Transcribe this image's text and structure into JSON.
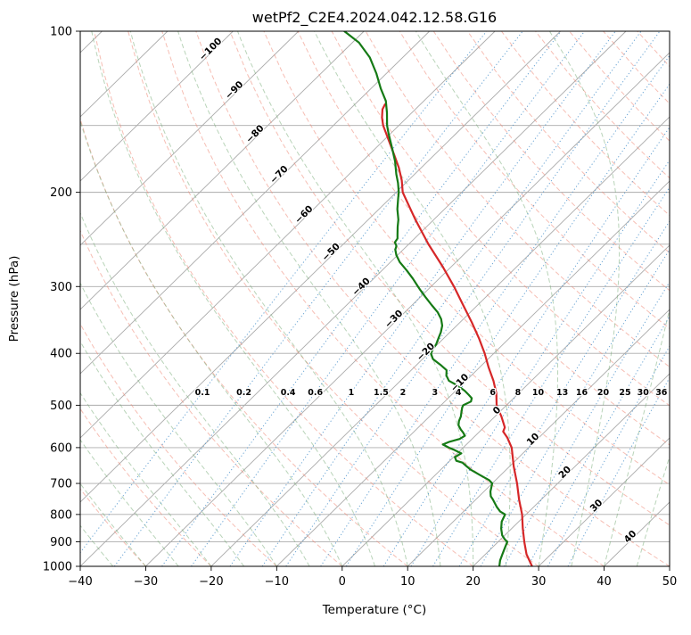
{
  "title": "wetPf2_C2E4.2024.042.12.58.G16",
  "chart_data": {
    "type": "line",
    "variant": "skew-t-log-p",
    "title": "wetPf2_C2E4.2024.042.12.58.G16",
    "xlabel": "Temperature (°C)",
    "ylabel": "Pressure (hPa)",
    "xlim": [
      -40,
      50
    ],
    "plim": [
      100,
      1000
    ],
    "skew_slope": 1.02,
    "x_ticks": [
      -40,
      -30,
      -20,
      -10,
      0,
      10,
      20,
      30,
      40,
      50
    ],
    "y_ticks": [
      100,
      200,
      300,
      400,
      500,
      600,
      700,
      800,
      900,
      1000
    ],
    "y_gridlines": [
      100,
      150,
      200,
      250,
      300,
      400,
      500,
      600,
      700,
      800,
      900,
      1000
    ],
    "grid_color": "#ababab",
    "isotherms": {
      "start": -160,
      "end": 50,
      "step": 10,
      "color": "#ababab",
      "labels": [
        {
          "value": -100,
          "p": 109,
          "color": "#2678b2"
        },
        {
          "value": -90,
          "p": 130,
          "color": "#2678b2"
        },
        {
          "value": -80,
          "p": 157,
          "color": "#2678b2"
        },
        {
          "value": -70,
          "p": 187,
          "color": "#2678b2"
        },
        {
          "value": -60,
          "p": 222,
          "color": "#2678b2"
        },
        {
          "value": -50,
          "p": 261,
          "color": "#2678b2"
        },
        {
          "value": -40,
          "p": 303,
          "color": "#2678b2"
        },
        {
          "value": -30,
          "p": 348,
          "color": "#2678b2"
        },
        {
          "value": -20,
          "p": 401,
          "color": "#2678b2"
        },
        {
          "value": -10,
          "p": 458,
          "color": "#2678b2"
        },
        {
          "value": 0,
          "p": 516,
          "color": "#8a8a8a"
        },
        {
          "value": 10,
          "p": 584,
          "color": "#b03a2e"
        },
        {
          "value": 20,
          "p": 673,
          "color": "#b03a2e"
        },
        {
          "value": 30,
          "p": 777,
          "color": "#b03a2e"
        },
        {
          "value": 40,
          "p": 888,
          "color": "#b03a2e"
        }
      ]
    },
    "dry_adiabats": {
      "start": -60,
      "end": 180,
      "step": 10,
      "color": "#ee8877",
      "opacity": 0.55
    },
    "moist_adiabats": {
      "start": -55,
      "end": 45,
      "step": 5,
      "color": "#74a974",
      "opacity": 0.5
    },
    "mixing_ratio": {
      "values": [
        0.1,
        0.2,
        0.4,
        0.6,
        1,
        1.5,
        2,
        3,
        4,
        6,
        8,
        10,
        13,
        16,
        20,
        25,
        30,
        36
      ],
      "label_pressure": 473,
      "line_color": "#4f94cd",
      "label_color": "#1f77b4"
    },
    "point_format": [
      "pressure_hPa",
      "temp_C"
    ],
    "series": [
      {
        "name": "temperature",
        "color": "#d62728",
        "width": 2.2,
        "points": [
          [
            1000,
            29
          ],
          [
            950,
            26.3
          ],
          [
            900,
            24
          ],
          [
            850,
            21.7
          ],
          [
            800,
            19.4
          ],
          [
            750,
            16.6
          ],
          [
            700,
            13.8
          ],
          [
            650,
            10.6
          ],
          [
            600,
            7.4
          ],
          [
            575,
            5.2
          ],
          [
            560,
            3.6
          ],
          [
            550,
            3.2
          ],
          [
            525,
            1
          ],
          [
            500,
            -1.5
          ],
          [
            475,
            -3.4
          ],
          [
            450,
            -5.8
          ],
          [
            425,
            -8.6
          ],
          [
            400,
            -11.4
          ],
          [
            375,
            -14.6
          ],
          [
            350,
            -18.2
          ],
          [
            325,
            -22.2
          ],
          [
            300,
            -26.5
          ],
          [
            275,
            -31.4
          ],
          [
            250,
            -37
          ],
          [
            225,
            -42.8
          ],
          [
            200,
            -49
          ],
          [
            190,
            -51
          ],
          [
            180,
            -53.4
          ],
          [
            170,
            -56.2
          ],
          [
            160,
            -59.2
          ],
          [
            150,
            -62.4
          ],
          [
            145,
            -63.8
          ],
          [
            140,
            -65
          ],
          [
            137,
            -65.4
          ]
        ]
      },
      {
        "name": "dewpoint",
        "color": "#157a15",
        "width": 2.2,
        "points": [
          [
            1000,
            24
          ],
          [
            975,
            23.2
          ],
          [
            950,
            22.6
          ],
          [
            925,
            22
          ],
          [
            900,
            21.4
          ],
          [
            890,
            20.6
          ],
          [
            875,
            19.6
          ],
          [
            850,
            18.4
          ],
          [
            825,
            17.4
          ],
          [
            800,
            16.8
          ],
          [
            790,
            15.6
          ],
          [
            775,
            14.4
          ],
          [
            750,
            12.6
          ],
          [
            740,
            11.8
          ],
          [
            725,
            11
          ],
          [
            700,
            10
          ],
          [
            690,
            9
          ],
          [
            675,
            6.8
          ],
          [
            660,
            4.6
          ],
          [
            650,
            3.4
          ],
          [
            640,
            2.2
          ],
          [
            635,
            1
          ],
          [
            625,
            0.2
          ],
          [
            615,
            0.6
          ],
          [
            605,
            -1.2
          ],
          [
            600,
            -2.2
          ],
          [
            592,
            -3.6
          ],
          [
            585,
            -3
          ],
          [
            578,
            -1.9
          ],
          [
            570,
            -1.6
          ],
          [
            562,
            -2.4
          ],
          [
            555,
            -3.2
          ],
          [
            545,
            -4.2
          ],
          [
            535,
            -4.8
          ],
          [
            525,
            -5.2
          ],
          [
            515,
            -5.8
          ],
          [
            505,
            -6.4
          ],
          [
            500,
            -6.6
          ],
          [
            492,
            -6
          ],
          [
            485,
            -6.4
          ],
          [
            478,
            -7.4
          ],
          [
            470,
            -8.6
          ],
          [
            460,
            -10.4
          ],
          [
            450,
            -12.6
          ],
          [
            440,
            -13.8
          ],
          [
            430,
            -14.6
          ],
          [
            420,
            -16.4
          ],
          [
            410,
            -18.4
          ],
          [
            405,
            -19
          ],
          [
            400,
            -19.6
          ],
          [
            392,
            -20
          ],
          [
            385,
            -20.2
          ],
          [
            375,
            -20.8
          ],
          [
            365,
            -21.4
          ],
          [
            355,
            -22.2
          ],
          [
            345,
            -23.4
          ],
          [
            335,
            -25
          ],
          [
            325,
            -27
          ],
          [
            315,
            -29
          ],
          [
            305,
            -31
          ],
          [
            300,
            -32
          ],
          [
            290,
            -34
          ],
          [
            280,
            -36.2
          ],
          [
            270,
            -38.6
          ],
          [
            262,
            -40.2
          ],
          [
            256,
            -41.2
          ],
          [
            252,
            -41.6
          ],
          [
            248,
            -42.4
          ],
          [
            244,
            -42.6
          ],
          [
            240,
            -43.2
          ],
          [
            232,
            -44.4
          ],
          [
            225,
            -45.4
          ],
          [
            215,
            -47.2
          ],
          [
            205,
            -48.8
          ],
          [
            200,
            -49.6
          ],
          [
            192,
            -51.2
          ],
          [
            185,
            -52.8
          ],
          [
            175,
            -55
          ],
          [
            165,
            -57.6
          ],
          [
            155,
            -60.4
          ],
          [
            150,
            -61.8
          ],
          [
            142,
            -63.8
          ],
          [
            135,
            -65.8
          ],
          [
            128,
            -68.5
          ],
          [
            120,
            -71.5
          ],
          [
            112,
            -75
          ],
          [
            105,
            -79
          ],
          [
            100,
            -83
          ]
        ]
      }
    ]
  }
}
